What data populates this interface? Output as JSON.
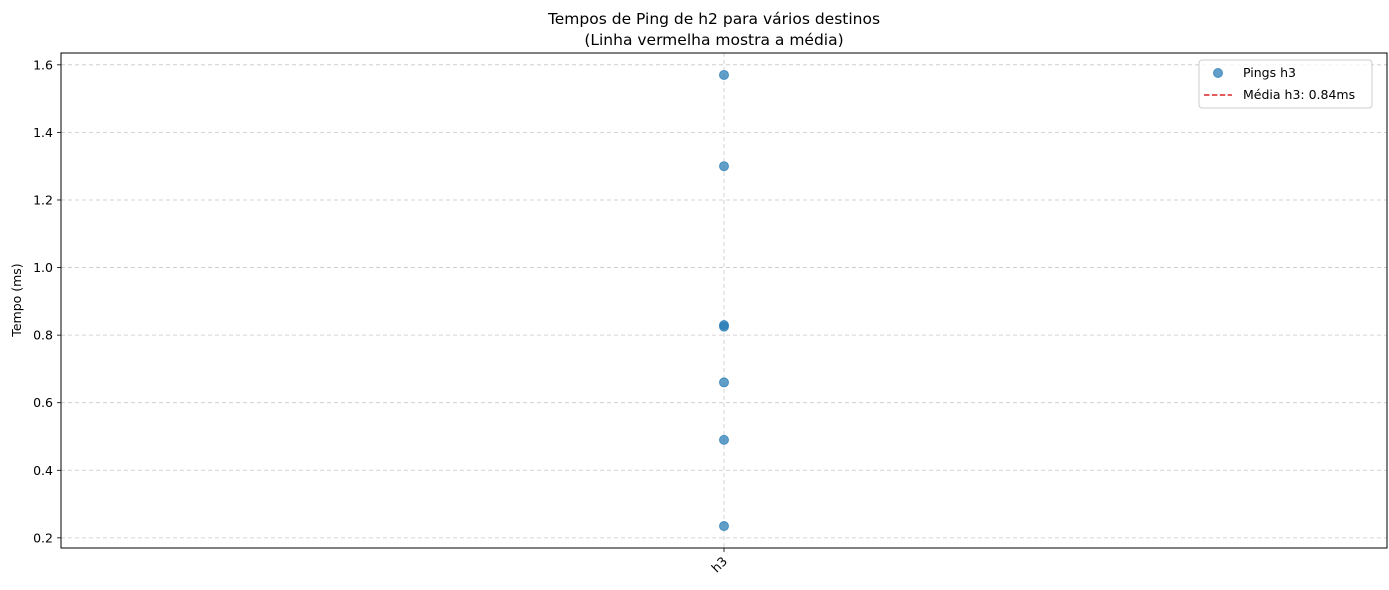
{
  "chart_data": {
    "type": "scatter",
    "title": "Tempos de Ping de h2 para vários destinos",
    "subtitle": "(Linha vermelha mostra a média)",
    "xlabel": "",
    "ylabel": "Tempo (ms)",
    "categories": [
      "h3"
    ],
    "ylim": [
      0.17,
      1.635
    ],
    "yticks": [
      "0.2",
      "0.4",
      "0.6",
      "0.8",
      "1.0",
      "1.2",
      "1.4",
      "1.6"
    ],
    "grid": true,
    "legend_position": "top-right",
    "series": [
      {
        "name": "Pings h3",
        "category": "h3",
        "values": [
          1.57,
          1.3,
          0.83,
          0.825,
          0.66,
          0.49,
          0.235
        ],
        "color": "#1f77b4"
      }
    ],
    "mean_line": {
      "label": "Média h3: 0.84ms",
      "value": 0.84,
      "color": "#d62728"
    }
  }
}
